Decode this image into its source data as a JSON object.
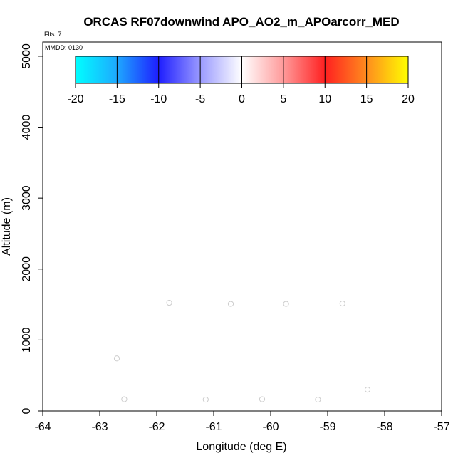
{
  "chart_data": {
    "type": "scatter",
    "title": "ORCAS RF07downwind APO_AO2_m_APOarcorr_MED",
    "annotations": {
      "flts": "Flts: 7",
      "mmdd": "MMDD: 0130"
    },
    "xlabel": "Longitude (deg E)",
    "ylabel": "Altitude (m)",
    "xlim": [
      -64,
      -57
    ],
    "ylim": [
      0,
      5200
    ],
    "xticks": [
      "-64",
      "-63",
      "-62",
      "-61",
      "-60",
      "-59",
      "-58",
      "-57"
    ],
    "yticks": [
      "0",
      "1000",
      "2000",
      "3000",
      "4000",
      "5000"
    ],
    "grid": false,
    "points": [
      {
        "x": -62.7,
        "y": 740
      },
      {
        "x": -62.57,
        "y": 165
      },
      {
        "x": -61.78,
        "y": 1525
      },
      {
        "x": -61.14,
        "y": 160
      },
      {
        "x": -60.7,
        "y": 1510
      },
      {
        "x": -60.15,
        "y": 165
      },
      {
        "x": -59.73,
        "y": 1510
      },
      {
        "x": -59.17,
        "y": 160
      },
      {
        "x": -58.74,
        "y": 1515
      },
      {
        "x": -58.3,
        "y": 300
      }
    ],
    "point_color": "#cccccc",
    "colorbar": {
      "range": [
        -20,
        20
      ],
      "ticks": [
        "-20",
        "-15",
        "-10",
        "-5",
        "0",
        "5",
        "10",
        "15",
        "20"
      ],
      "color_stops": [
        {
          "value": -20,
          "color": "#00ffff"
        },
        {
          "value": -15,
          "color": "#1ea8ff"
        },
        {
          "value": -10,
          "color": "#1e1eff"
        },
        {
          "value": -5,
          "color": "#9a9aff"
        },
        {
          "value": 0,
          "color": "#ffffff"
        },
        {
          "value": 5,
          "color": "#ff9a9a"
        },
        {
          "value": 10,
          "color": "#ff2020"
        },
        {
          "value": 15,
          "color": "#ff8c1e"
        },
        {
          "value": 20,
          "color": "#ffff00"
        }
      ]
    }
  }
}
